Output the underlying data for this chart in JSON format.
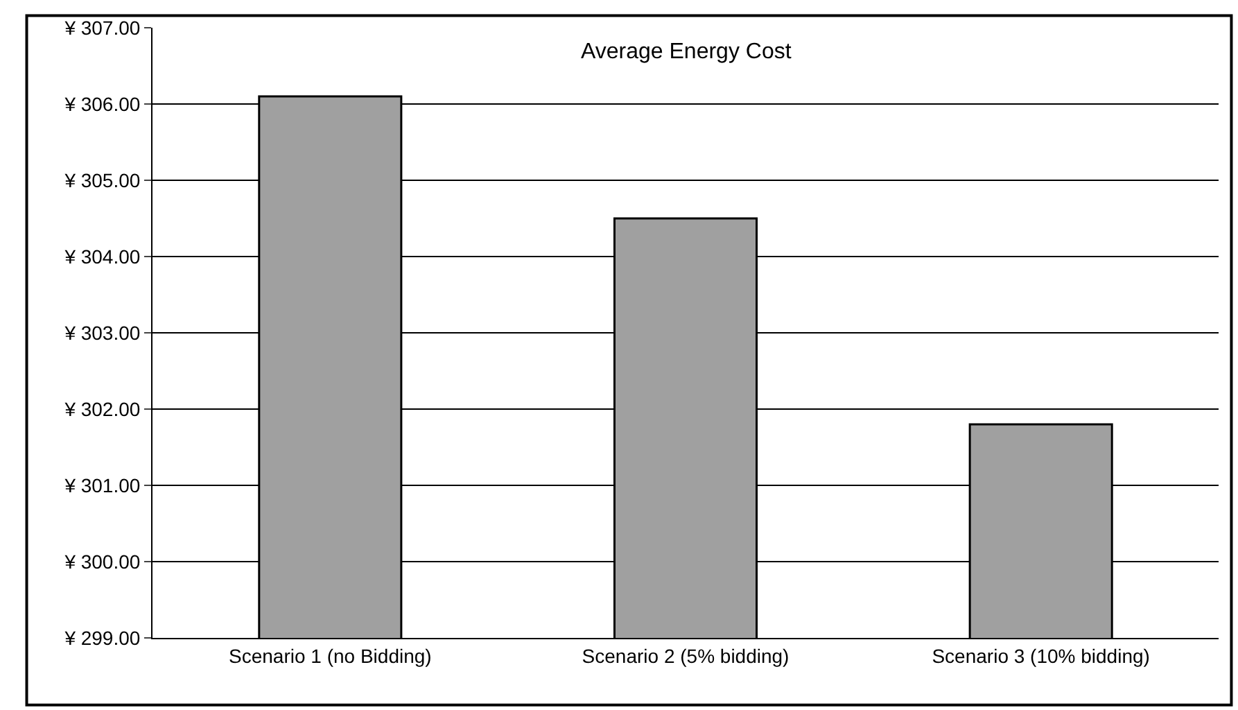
{
  "chart_data": {
    "type": "bar",
    "title": "Average Energy Cost",
    "categories": [
      "Scenario 1 (no Bidding)",
      "Scenario 2 (5% bidding)",
      "Scenario 3 (10% bidding)"
    ],
    "values": [
      306.1,
      304.5,
      301.8
    ],
    "color": "#a0a0a0",
    "ylim": [
      299,
      307
    ],
    "yticks": [
      {
        "value": 299,
        "label": "¥ 299.00"
      },
      {
        "value": 300,
        "label": "¥ 300.00"
      },
      {
        "value": 301,
        "label": "¥ 301.00"
      },
      {
        "value": 302,
        "label": "¥ 302.00"
      },
      {
        "value": 303,
        "label": "¥ 303.00"
      },
      {
        "value": 304,
        "label": "¥ 304.00"
      },
      {
        "value": 305,
        "label": "¥ 305.00"
      },
      {
        "value": 306,
        "label": "¥ 306.00"
      },
      {
        "value": 307,
        "label": "¥ 307.00"
      }
    ],
    "grid": "y"
  }
}
